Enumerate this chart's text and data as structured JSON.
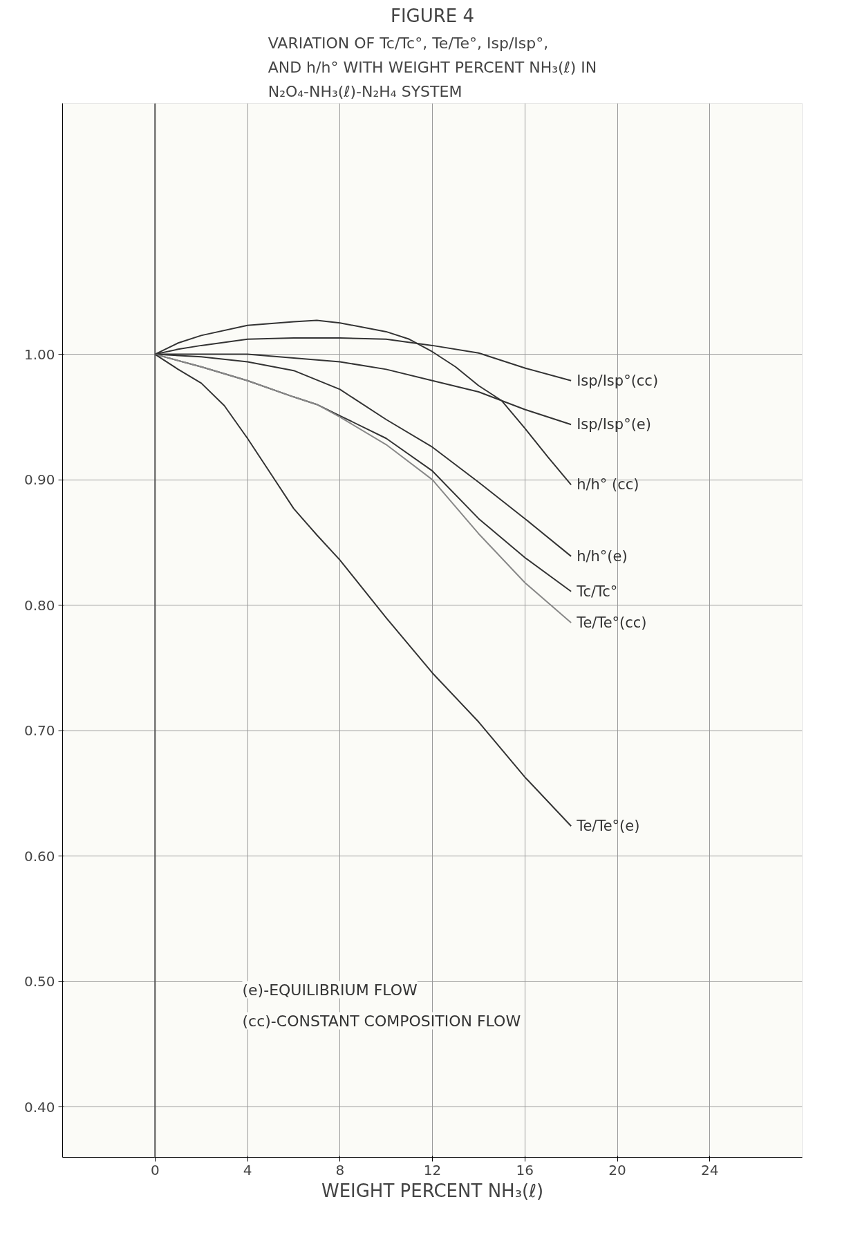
{
  "chart_data": {
    "type": "line",
    "title": "FIGURE 4",
    "subtitle": "VARIATION OF Tc/Tc°, Te/Te°, Isp/Isp°, AND h/h° WITH WEIGHT PERCENT NH₃(ℓ) IN N₂O₄-NH₃(ℓ)-N₂H₄ SYSTEM",
    "xlabel": "WEIGHT PERCENT NH₃(ℓ)",
    "annotations": [
      "(e)-EQUILIBRIUM FLOW",
      "(cc)-CONSTANT COMPOSITION FLOW"
    ],
    "xlim": [
      -4,
      28
    ],
    "ylim": [
      0.36,
      1.2
    ],
    "xticks": [
      0,
      4,
      8,
      12,
      16,
      20,
      24
    ],
    "yticks": [
      {
        "value": 0.4,
        "label": "0.40"
      },
      {
        "value": 0.5,
        "label": "0.50"
      },
      {
        "value": 0.6,
        "label": "0.60"
      },
      {
        "value": 0.7,
        "label": "0.70"
      },
      {
        "value": 0.8,
        "label": "0.80"
      },
      {
        "value": 0.9,
        "label": "0.90"
      },
      {
        "value": 1.0,
        "label": "1.00"
      }
    ],
    "grid": true,
    "legend": false,
    "marker": "none",
    "line_style": "solid",
    "series": [
      {
        "name": "Isp/Isp°(cc)",
        "color": "#333333",
        "x": [
          0,
          1,
          2,
          4,
          6,
          8,
          10,
          12,
          14,
          16,
          18
        ],
        "values": [
          1.0,
          1.004,
          1.007,
          1.012,
          1.013,
          1.013,
          1.012,
          1.007,
          1.001,
          0.989,
          0.979
        ]
      },
      {
        "name": "Isp/Isp°(e)",
        "color": "#333333",
        "x": [
          0,
          2,
          4,
          6,
          8,
          10,
          12,
          14,
          16,
          18
        ],
        "values": [
          1.0,
          1.0,
          1.0,
          0.997,
          0.994,
          0.988,
          0.979,
          0.97,
          0.956,
          0.944
        ]
      },
      {
        "name": "h/h° (cc)",
        "color": "#333333",
        "x": [
          0,
          1,
          2,
          4,
          6,
          7,
          8,
          10,
          11,
          12,
          13,
          14,
          15,
          16,
          17,
          18
        ],
        "values": [
          1.0,
          1.009,
          1.015,
          1.023,
          1.026,
          1.027,
          1.025,
          1.018,
          1.012,
          1.002,
          0.99,
          0.975,
          0.963,
          0.941,
          0.918,
          0.896
        ]
      },
      {
        "name": "h/h°(e)",
        "color": "#333333",
        "x": [
          0,
          2,
          4,
          6,
          8,
          10,
          12,
          14,
          16,
          18
        ],
        "values": [
          1.0,
          0.998,
          0.994,
          0.987,
          0.972,
          0.948,
          0.926,
          0.898,
          0.869,
          0.839
        ]
      },
      {
        "name": "Tc/Tc°",
        "color": "#333333",
        "x": [
          0,
          2,
          4,
          6,
          7,
          8,
          10,
          12,
          14,
          16,
          18
        ],
        "values": [
          1.0,
          0.99,
          0.979,
          0.966,
          0.96,
          0.951,
          0.933,
          0.907,
          0.869,
          0.838,
          0.811
        ]
      },
      {
        "name": "Te/Te°(cc)",
        "color": "#888888",
        "x": [
          0,
          2,
          4,
          6,
          7,
          8,
          10,
          12,
          14,
          16,
          18
        ],
        "values": [
          1.0,
          0.99,
          0.979,
          0.966,
          0.96,
          0.95,
          0.928,
          0.9,
          0.857,
          0.818,
          0.786
        ]
      },
      {
        "name": "Te/Te°(e)",
        "color": "#333333",
        "x": [
          0,
          1,
          2,
          3,
          4,
          5,
          6,
          7,
          8,
          10,
          12,
          14,
          16,
          18
        ],
        "values": [
          1.0,
          0.988,
          0.977,
          0.959,
          0.933,
          0.905,
          0.877,
          0.856,
          0.836,
          0.79,
          0.746,
          0.707,
          0.663,
          0.624
        ]
      }
    ]
  }
}
